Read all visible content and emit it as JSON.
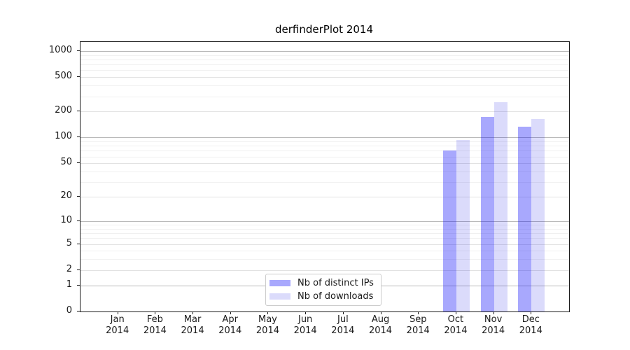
{
  "figure": {
    "background": "#ffffff"
  },
  "chart_data": {
    "type": "bar",
    "title": "derfinderPlot 2014",
    "categories": [
      "Jan",
      "Feb",
      "Mar",
      "Apr",
      "May",
      "Jun",
      "Jul",
      "Aug",
      "Sep",
      "Oct",
      "Nov",
      "Dec"
    ],
    "x_tick_year_line": "2014",
    "series": [
      {
        "name": "Nb of distinct IPs",
        "color": "rgba(0,0,250,0.34)",
        "values": [
          0,
          0,
          0,
          0,
          0,
          0,
          0,
          0,
          0,
          70,
          172,
          134
        ]
      },
      {
        "name": "Nb of downloads",
        "color": "rgba(0,0,230,0.14)",
        "values": [
          0,
          0,
          0,
          0,
          0,
          0,
          0,
          0,
          0,
          94,
          255,
          164
        ]
      }
    ],
    "y_axis": {
      "scale": "log10(value+1)",
      "major_ticks": [
        0,
        1,
        2,
        5,
        10,
        20,
        50,
        100,
        200,
        500,
        1000
      ],
      "minor_gridlines": [
        3,
        4,
        6,
        7,
        8,
        9,
        30,
        40,
        60,
        70,
        80,
        90,
        300,
        400,
        600,
        700,
        800,
        900
      ],
      "top_value": 1175
    },
    "grid": "horizontal, major and minor, on",
    "legend": {
      "position": "inside bottom-center",
      "items": [
        "Nb of distinct IPs",
        "Nb of downloads"
      ]
    }
  }
}
